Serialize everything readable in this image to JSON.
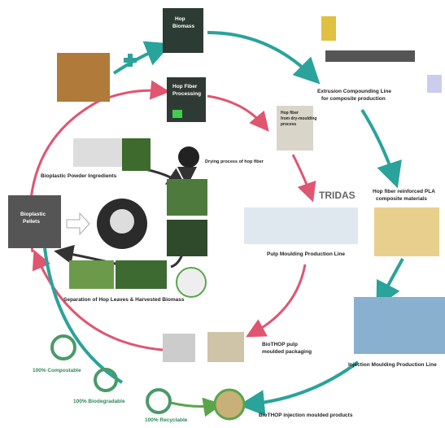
{
  "labels": {
    "extrusion_line": [
      "Extrusion Compounding Line",
      "for composite production"
    ],
    "pla_composite": [
      "Hop fiber reinforced PLA",
      "composite materials"
    ],
    "injection_line": "Injection Moulding Production Line",
    "injection_products": "BioTHOP injection moulded products",
    "pulp_packaging": [
      "BioTHOP pulp",
      "moulded packaging"
    ],
    "pulp_line": "Pulp Moulding Production Line",
    "tridas": "TRIDAS",
    "hop_fiber": [
      "Hop fiber",
      "from dry-moulding",
      "process"
    ],
    "bioplastic": "Bioplastic Powder Ingredients",
    "separation": "Separation of Hop Leaves & Harvested Biomass",
    "compostable": "100% Compostable",
    "biodegradable": "100% Biodegradable",
    "recyclable": "100% Recyclable",
    "pellets": [
      "Bioplastic",
      "Pellets"
    ],
    "hop_biomass": [
      "Hop",
      "Biomass"
    ],
    "processing": [
      "Hop Fiber",
      "Processing"
    ],
    "drying": "Drying process of hop fiber"
  }
}
